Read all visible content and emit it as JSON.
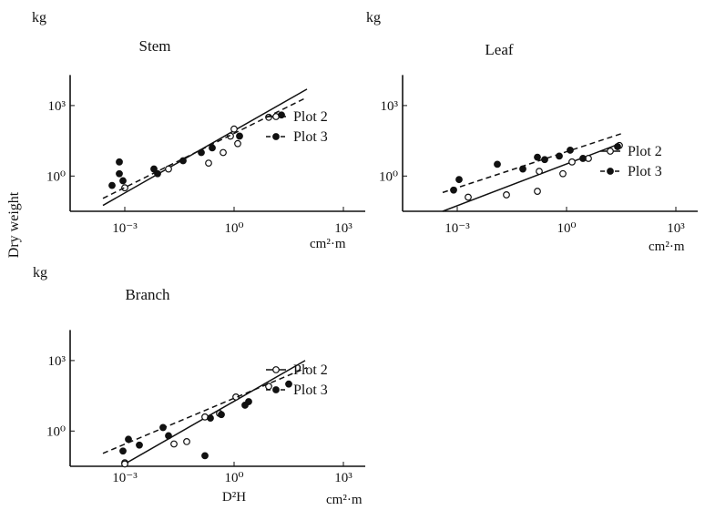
{
  "figure": {
    "ylabel": "Dry weight",
    "y_unit": "kg",
    "x_unit": "cm²·m",
    "x_name": "D²H"
  },
  "chart_data": [
    {
      "type": "scatter",
      "title": "Stem",
      "log_scale": true,
      "xlim_log10": [
        -4.5,
        3.5
      ],
      "ylim_log10": [
        -1.5,
        4.3
      ],
      "x_ticks": [
        "10⁻³",
        "10⁰",
        "10³"
      ],
      "y_ticks": [
        "10⁰",
        "10³"
      ],
      "legend": "right",
      "series": [
        {
          "name": "Plot 2",
          "marker": "open-circle",
          "line": "solid",
          "fit_log10": {
            "x": [
              -3.6,
              2.0
            ],
            "y": [
              -1.25,
              3.7
            ]
          },
          "points_log10": [
            [
              -3.0,
              -0.5
            ],
            [
              -1.8,
              0.3
            ],
            [
              -0.7,
              0.55
            ],
            [
              -0.3,
              1.0
            ],
            [
              0.1,
              1.38
            ],
            [
              -0.1,
              1.7
            ],
            [
              0.0,
              2.0
            ],
            [
              0.95,
              2.5
            ]
          ]
        },
        {
          "name": "Plot 3",
          "marker": "filled-circle",
          "line": "dashed",
          "fit_log10": {
            "x": [
              -3.6,
              2.0
            ],
            "y": [
              -0.95,
              3.35
            ]
          },
          "points_log10": [
            [
              -3.35,
              -0.4
            ],
            [
              -3.15,
              0.1
            ],
            [
              -3.05,
              -0.2
            ],
            [
              -3.15,
              0.6
            ],
            [
              -2.2,
              0.3
            ],
            [
              -2.1,
              0.1
            ],
            [
              -1.4,
              0.65
            ],
            [
              -0.9,
              1.0
            ],
            [
              -0.6,
              1.2
            ],
            [
              0.15,
              1.7
            ],
            [
              1.3,
              2.6
            ]
          ]
        }
      ]
    },
    {
      "type": "scatter",
      "title": "Leaf",
      "log_scale": true,
      "xlim_log10": [
        -4.5,
        3.5
      ],
      "ylim_log10": [
        -1.5,
        4.3
      ],
      "x_ticks": [
        "10⁻³",
        "10⁰",
        "10³"
      ],
      "y_ticks": [
        "10⁰",
        "10³"
      ],
      "legend": "right",
      "series": [
        {
          "name": "Plot 2",
          "marker": "open-circle",
          "line": "solid",
          "fit_log10": {
            "x": [
              -3.4,
              1.5
            ],
            "y": [
              -1.5,
              1.4
            ]
          },
          "points_log10": [
            [
              -2.7,
              -0.9
            ],
            [
              -1.65,
              -0.8
            ],
            [
              -0.8,
              -0.65
            ],
            [
              -0.75,
              0.2
            ],
            [
              -0.1,
              0.1
            ],
            [
              0.15,
              0.6
            ],
            [
              0.6,
              0.75
            ],
            [
              1.45,
              1.3
            ]
          ]
        },
        {
          "name": "Plot 3",
          "marker": "filled-circle",
          "line": "dashed",
          "fit_log10": {
            "x": [
              -3.4,
              1.5
            ],
            "y": [
              -0.7,
              1.8
            ]
          },
          "points_log10": [
            [
              -3.1,
              -0.6
            ],
            [
              -2.95,
              -0.15
            ],
            [
              -1.9,
              0.5
            ],
            [
              -1.2,
              0.3
            ],
            [
              -0.8,
              0.8
            ],
            [
              -0.6,
              0.7
            ],
            [
              -0.2,
              0.85
            ],
            [
              0.1,
              1.1
            ],
            [
              0.45,
              0.75
            ],
            [
              1.4,
              1.25
            ]
          ]
        }
      ]
    },
    {
      "type": "scatter",
      "title": "Branch",
      "log_scale": true,
      "xlim_log10": [
        -4.5,
        3.5
      ],
      "ylim_log10": [
        -1.5,
        4.3
      ],
      "x_ticks": [
        "10⁻³",
        "10⁰",
        "10³"
      ],
      "y_ticks": [
        "10⁰",
        "10³"
      ],
      "xlabel": "D²H",
      "legend": "right",
      "series": [
        {
          "name": "Plot 2",
          "marker": "open-circle",
          "line": "solid",
          "fit_log10": {
            "x": [
              -3.0,
              1.95
            ],
            "y": [
              -1.4,
              3.0
            ]
          },
          "points_log10": [
            [
              -3.0,
              -1.35
            ],
            [
              -3.0,
              -1.4
            ],
            [
              -1.65,
              -0.55
            ],
            [
              -1.3,
              -0.45
            ],
            [
              -0.8,
              0.6
            ],
            [
              -0.4,
              0.75
            ],
            [
              0.05,
              1.45
            ],
            [
              0.95,
              1.9
            ]
          ]
        },
        {
          "name": "Plot 3",
          "marker": "filled-circle",
          "line": "dashed",
          "fit_log10": {
            "x": [
              -3.6,
              2.0
            ],
            "y": [
              -0.95,
              2.7
            ]
          },
          "points_log10": [
            [
              -3.05,
              -0.85
            ],
            [
              -2.9,
              -0.35
            ],
            [
              -2.6,
              -0.6
            ],
            [
              -1.95,
              0.15
            ],
            [
              -1.8,
              -0.2
            ],
            [
              -0.8,
              -1.05
            ],
            [
              -0.65,
              0.55
            ],
            [
              -0.35,
              0.7
            ],
            [
              0.3,
              1.1
            ],
            [
              0.4,
              1.25
            ],
            [
              1.5,
              2.0
            ]
          ]
        }
      ]
    }
  ]
}
